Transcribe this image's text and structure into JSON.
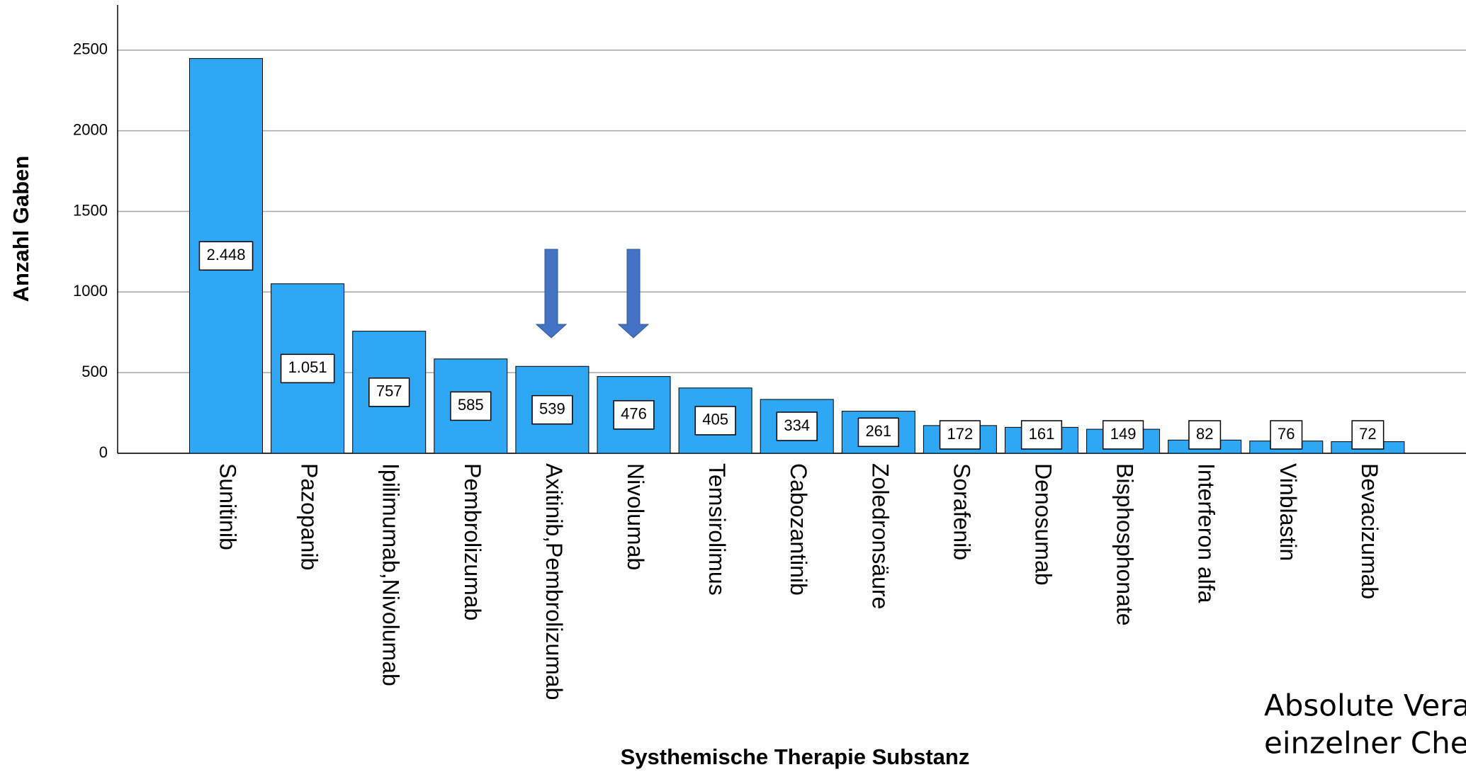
{
  "chart_data": {
    "type": "bar",
    "x_label": "Systhemische Therapie Substanz",
    "y_label": "Anzahl Gaben",
    "categories": [
      "Sunitinib",
      "Pazopanib",
      "Ipilimumab,Nivolumab",
      "Pembrolizumab",
      "Axitinib,Pembrolizumab",
      "Nivolumab",
      "Temsirolimus",
      "Cabozantinib",
      "Zoledronsäure",
      "Sorafenib",
      "Denosumab",
      "Bisphosphonate",
      "Interferon alfa",
      "Vinblastin",
      "Bevacizumab"
    ],
    "values": [
      2448,
      1051,
      757,
      585,
      539,
      476,
      405,
      334,
      261,
      172,
      161,
      149,
      82,
      76,
      72
    ],
    "value_labels": [
      "2.448",
      "1.051",
      "757",
      "585",
      "539",
      "476",
      "405",
      "334",
      "261",
      "172",
      "161",
      "149",
      "82",
      "76",
      "72"
    ],
    "color": "#2ea8f5",
    "ylim": [
      0,
      2780
    ],
    "yticks": [
      0,
      500,
      1000,
      1500,
      2000,
      2500
    ],
    "grid": true,
    "annotations": [
      "Absolute Verab",
      "einzelner Chem"
    ]
  }
}
